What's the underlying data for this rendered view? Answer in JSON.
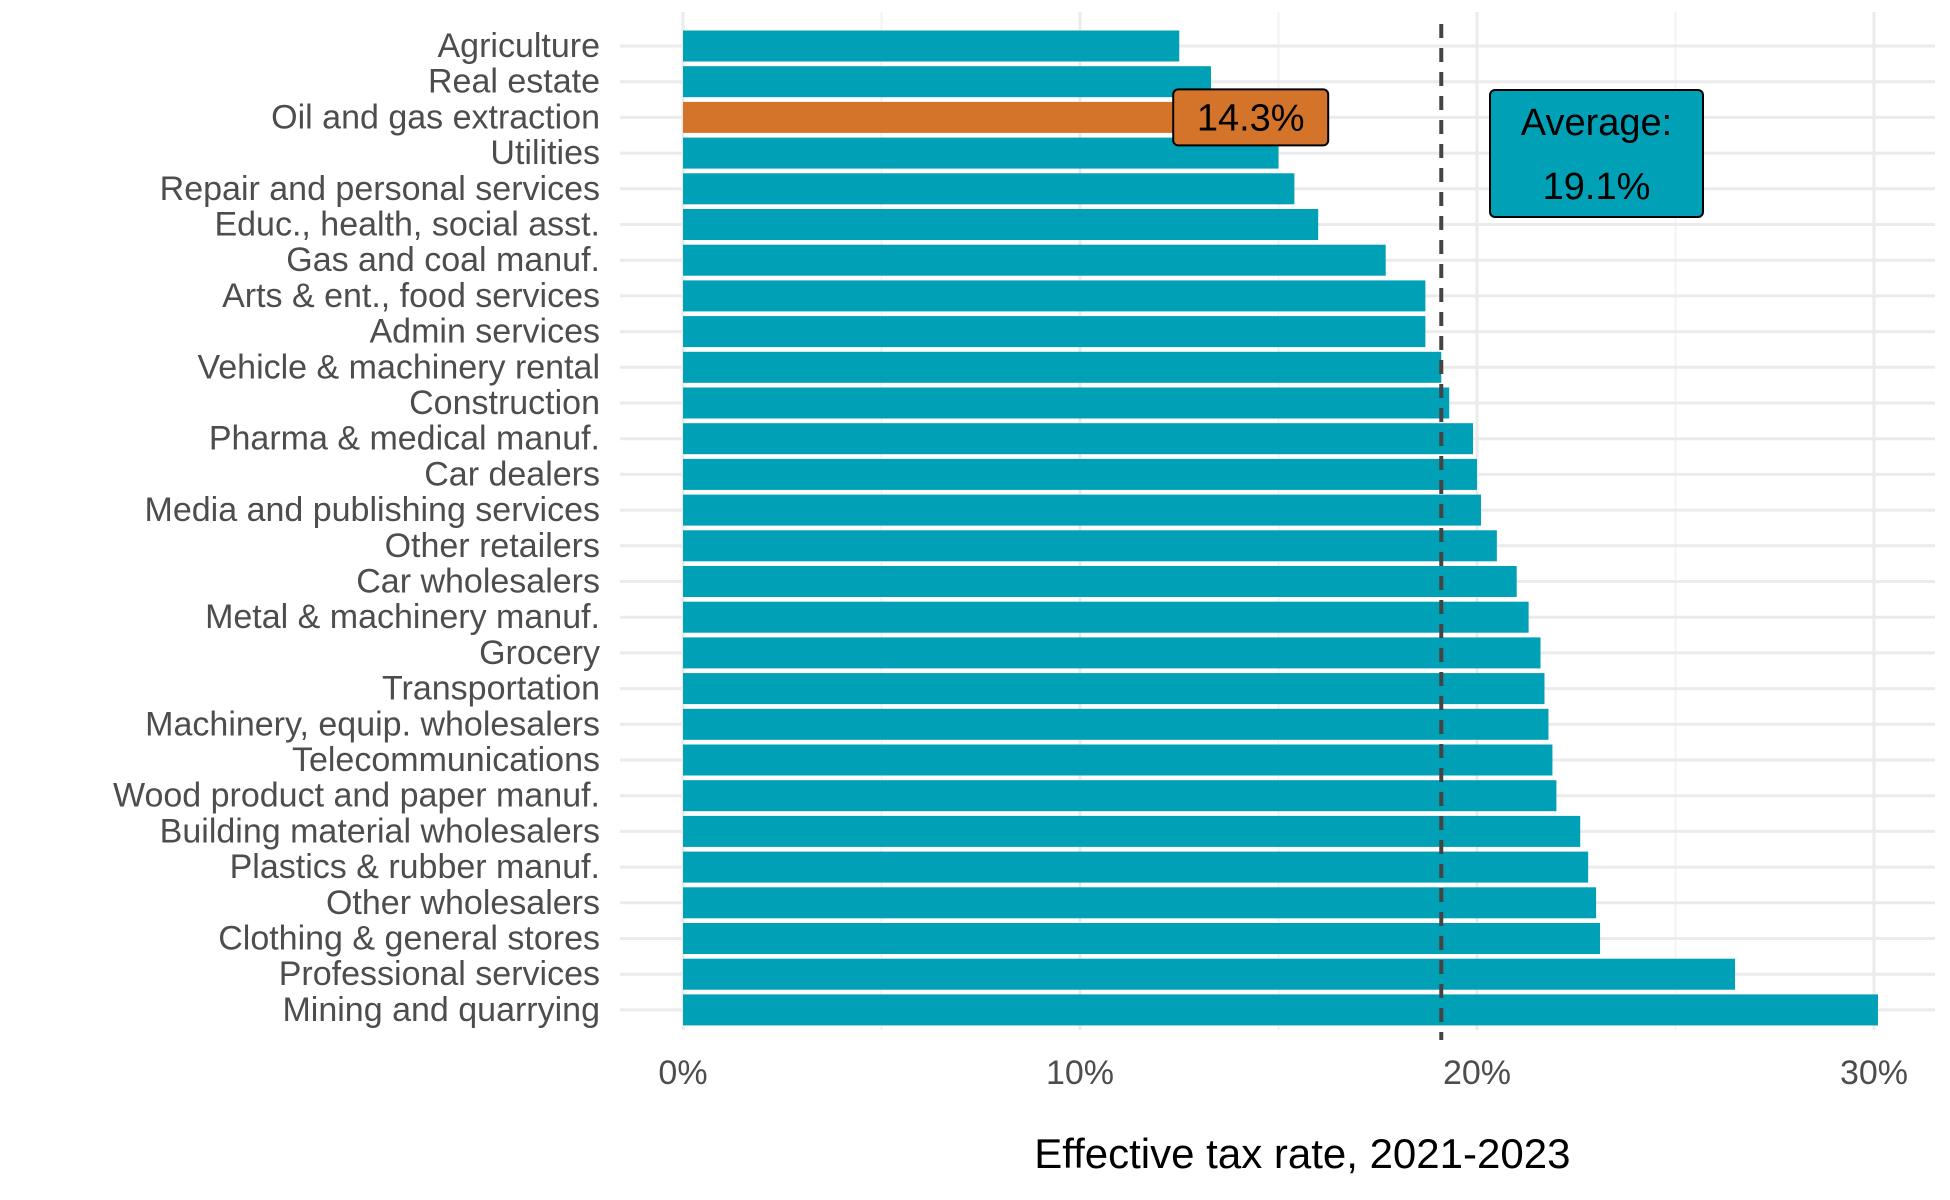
{
  "chart_data": {
    "type": "bar",
    "orientation": "horizontal",
    "xlabel": "Effective tax rate, 2021-2023",
    "xlim": [
      0,
      31
    ],
    "xticks": [
      0,
      10,
      20,
      30
    ],
    "xtick_labels": [
      "0%",
      "10%",
      "20%",
      "30%"
    ],
    "categories": [
      "Agriculture",
      "Real estate",
      "Oil and gas extraction",
      "Utilities",
      "Repair and personal services",
      "Educ., health, social asst.",
      "Gas and coal manuf.",
      "Arts & ent., food services",
      "Admin services",
      "Vehicle & machinery rental",
      "Construction",
      "Pharma & medical manuf.",
      "Car dealers",
      "Media and publishing services",
      "Other retailers",
      "Car wholesalers",
      "Metal & machinery manuf.",
      "Grocery",
      "Transportation",
      "Machinery, equip. wholesalers",
      "Telecommunications",
      "Wood product and paper manuf.",
      "Building material wholesalers",
      "Plastics & rubber manuf.",
      "Other wholesalers",
      "Clothing & general stores",
      "Professional services",
      "Mining and quarrying"
    ],
    "values": [
      12.5,
      13.3,
      14.3,
      15.0,
      15.4,
      16.0,
      17.7,
      18.7,
      18.7,
      19.1,
      19.3,
      19.9,
      20.0,
      20.1,
      20.5,
      21.0,
      21.3,
      21.6,
      21.7,
      21.8,
      21.9,
      22.0,
      22.6,
      22.8,
      23.0,
      23.1,
      26.5,
      30.1
    ],
    "bar_color": "#00a0b6",
    "highlight": {
      "category": "Oil and gas extraction",
      "color": "#d4742a",
      "label": "14.3%"
    },
    "average": {
      "value": 19.1,
      "label_line1": "Average:",
      "label_line2": "19.1%"
    },
    "grid": true
  }
}
